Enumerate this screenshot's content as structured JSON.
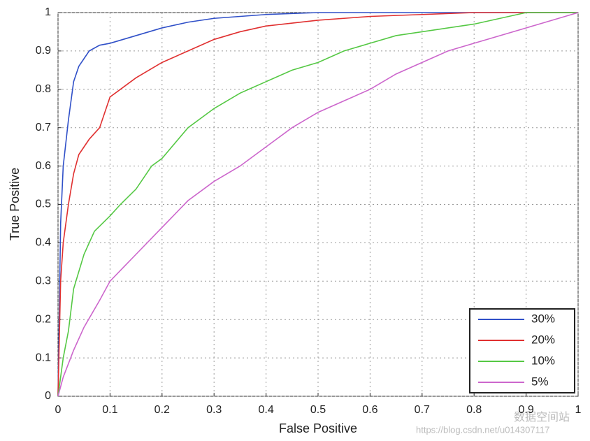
{
  "chart_data": {
    "type": "line",
    "xlabel": "False Positive",
    "ylabel": "True Positive",
    "xlim": [
      0,
      1
    ],
    "ylim": [
      0,
      1
    ],
    "xticks": [
      0,
      0.1,
      0.2,
      0.3,
      0.4,
      0.5,
      0.6,
      0.7,
      0.8,
      0.9,
      1
    ],
    "yticks": [
      0,
      0.1,
      0.2,
      0.3,
      0.4,
      0.5,
      0.6,
      0.7,
      0.8,
      0.9,
      1
    ],
    "grid": true,
    "legend": "lower right",
    "watermark": [
      "数据空间站",
      "https://blog.csdn.net/u014307117"
    ],
    "series": [
      {
        "name": "30%",
        "color": "#3050c8",
        "x": [
          0,
          0.005,
          0.01,
          0.02,
          0.03,
          0.04,
          0.05,
          0.06,
          0.08,
          0.1,
          0.15,
          0.2,
          0.25,
          0.3,
          0.4,
          0.5,
          1
        ],
        "values": [
          0,
          0.45,
          0.6,
          0.72,
          0.82,
          0.86,
          0.88,
          0.9,
          0.915,
          0.92,
          0.94,
          0.96,
          0.975,
          0.985,
          0.995,
          1,
          1
        ]
      },
      {
        "name": "20%",
        "color": "#e03030",
        "x": [
          0,
          0.005,
          0.01,
          0.02,
          0.03,
          0.04,
          0.06,
          0.08,
          0.1,
          0.12,
          0.15,
          0.2,
          0.25,
          0.3,
          0.35,
          0.4,
          0.5,
          0.6,
          0.7,
          0.8,
          1
        ],
        "values": [
          0,
          0.3,
          0.4,
          0.5,
          0.58,
          0.63,
          0.67,
          0.7,
          0.78,
          0.8,
          0.83,
          0.87,
          0.9,
          0.93,
          0.95,
          0.965,
          0.98,
          0.99,
          0.995,
          1,
          1
        ]
      },
      {
        "name": "10%",
        "color": "#55c844",
        "x": [
          0,
          0.01,
          0.02,
          0.03,
          0.05,
          0.07,
          0.1,
          0.12,
          0.15,
          0.18,
          0.2,
          0.25,
          0.3,
          0.35,
          0.4,
          0.45,
          0.5,
          0.55,
          0.6,
          0.65,
          0.7,
          0.8,
          0.9,
          1
        ],
        "values": [
          0,
          0.1,
          0.17,
          0.28,
          0.37,
          0.43,
          0.47,
          0.5,
          0.54,
          0.6,
          0.62,
          0.7,
          0.75,
          0.79,
          0.82,
          0.85,
          0.87,
          0.9,
          0.92,
          0.94,
          0.95,
          0.97,
          1,
          1
        ]
      },
      {
        "name": "5%",
        "color": "#cc66cc",
        "x": [
          0,
          0.01,
          0.03,
          0.05,
          0.08,
          0.1,
          0.15,
          0.2,
          0.25,
          0.3,
          0.35,
          0.4,
          0.45,
          0.5,
          0.55,
          0.6,
          0.65,
          0.7,
          0.75,
          0.8,
          0.9,
          1
        ],
        "values": [
          0,
          0.05,
          0.12,
          0.18,
          0.25,
          0.3,
          0.37,
          0.44,
          0.51,
          0.56,
          0.6,
          0.65,
          0.7,
          0.74,
          0.77,
          0.8,
          0.84,
          0.87,
          0.9,
          0.92,
          0.96,
          1
        ]
      }
    ]
  }
}
